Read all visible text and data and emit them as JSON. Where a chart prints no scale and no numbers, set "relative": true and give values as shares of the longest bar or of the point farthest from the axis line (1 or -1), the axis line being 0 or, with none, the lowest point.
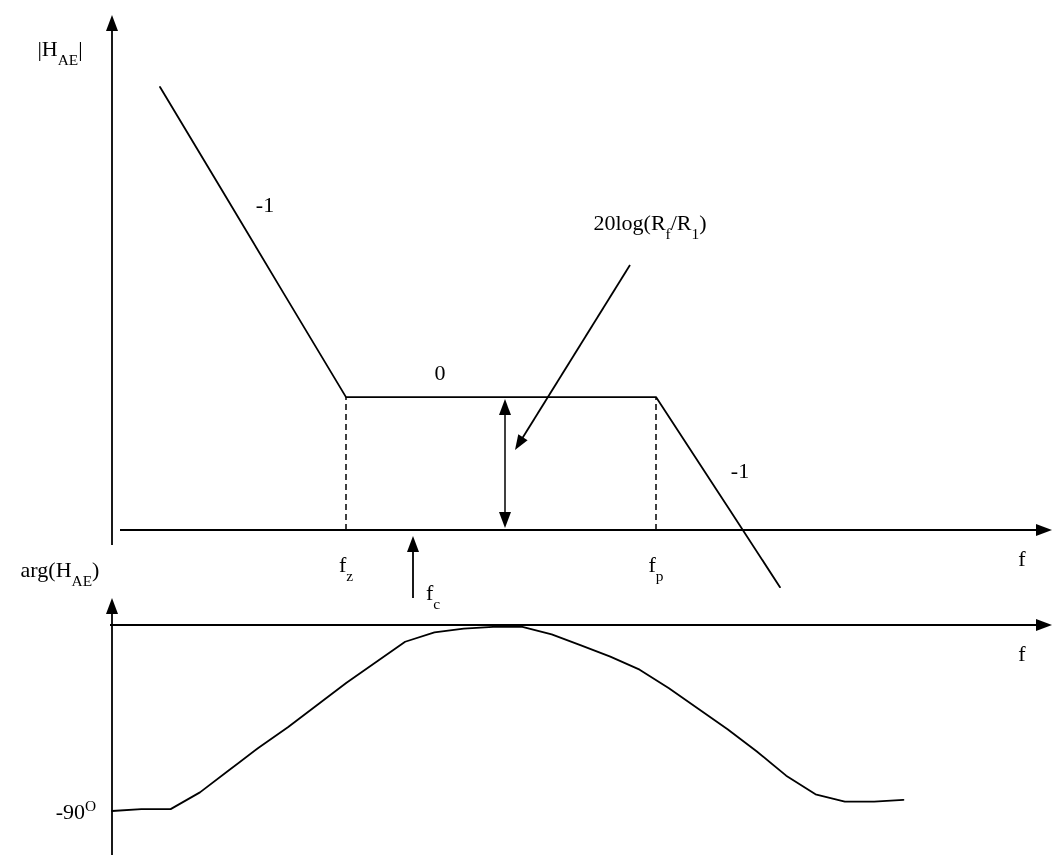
{
  "chart_data": [
    {
      "type": "line",
      "relative": true,
      "ylabel": "|H$_{AE}$|",
      "xlabel": "f",
      "categories": [
        null,
        null,
        null,
        "f$_{z}$",
        null,
        null,
        null,
        null,
        "f$_{p}$",
        null,
        null,
        null,
        null,
        null,
        null
      ],
      "series": [
        {
          "color": "#000000",
          "values": [
            1,
            0.767,
            0.533,
            0.3,
            0.3,
            0.3,
            0.3,
            0.3,
            0.3,
            0.086,
            -0.129,
            null,
            null,
            null,
            null
          ]
        }
      ],
      "ref_lines": [
        {
          "axis": "x",
          "value": "f$_{z}$",
          "line_style": "dashed",
          "color": "#000000"
        },
        {
          "axis": "x",
          "value": "f$_{p}$",
          "line_style": "dashed",
          "color": "#000000"
        }
      ],
      "annotations": [
        "-1",
        "0",
        "-1",
        "20log(R$_{f}$/R$_{1}$)",
        "f$_{c}$"
      ],
      "line_style": "solid"
    },
    {
      "type": "line",
      "relative": true,
      "ylabel": "arg(H$_{AE}$)",
      "xlabel": "f",
      "categories": [
        null,
        null,
        null,
        null,
        null,
        null,
        null,
        null,
        null,
        null,
        null,
        null,
        null,
        null,
        null,
        null,
        null,
        null,
        null,
        null,
        null,
        null,
        null,
        null,
        null,
        null,
        null,
        null,
        null,
        null,
        null,
        null,
        null
      ],
      "series": [
        {
          "color": "#000000",
          "values": [
            -1,
            -0.99,
            -0.99,
            -0.9,
            -0.78,
            -0.66,
            -0.55,
            -0.43,
            -0.31,
            -0.2,
            -0.09,
            -0.04,
            -0.02,
            -0.01,
            -0.01,
            -0.05,
            -0.11,
            -0.17,
            -0.24,
            -0.34,
            -0.45,
            -0.56,
            -0.68,
            -0.81,
            -0.91,
            -0.95,
            -0.95,
            -0.94,
            null,
            null,
            null,
            null,
            null
          ]
        }
      ],
      "annotations": [
        "-90$^{O}$"
      ],
      "line_style": "solid"
    }
  ]
}
